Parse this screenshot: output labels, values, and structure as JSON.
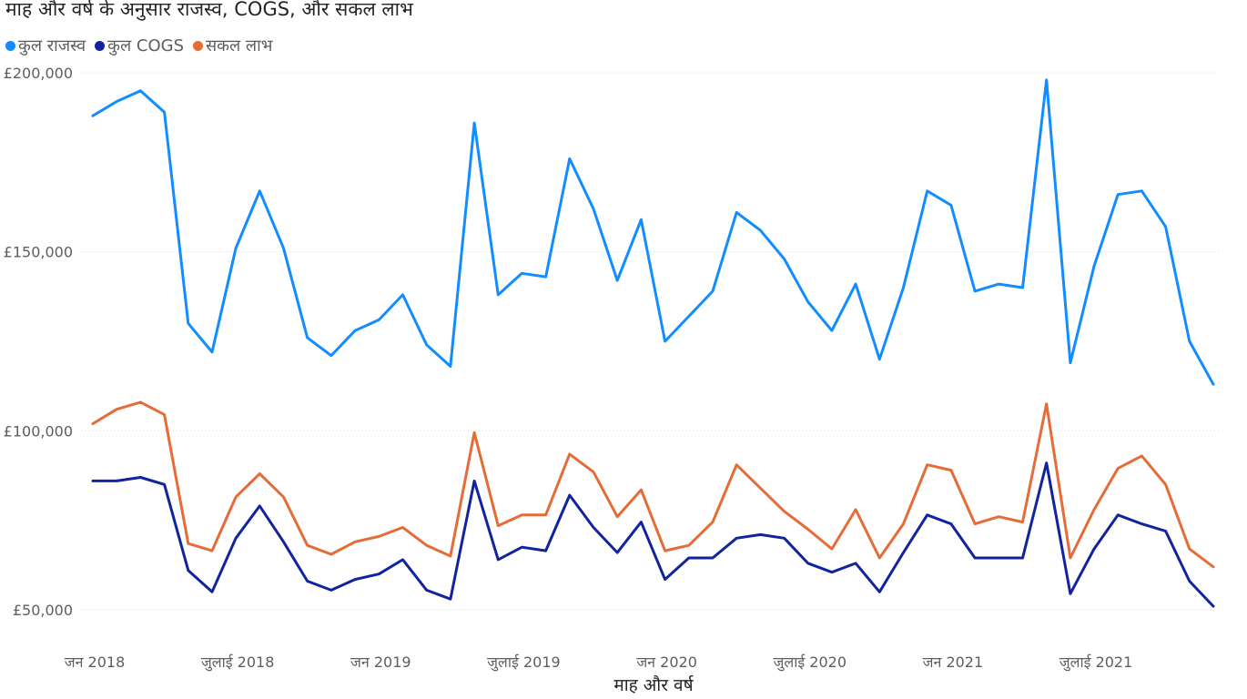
{
  "chart_data": {
    "type": "line",
    "title": "माह और वर्ष के अनुसार राजस्व, COGS, और सकल लाभ",
    "xlabel": "माह और वर्ष",
    "ylabel": "",
    "ylim": [
      50000,
      200000
    ],
    "y_ticks": [
      {
        "value": 50000,
        "label": "£50,000"
      },
      {
        "value": 100000,
        "label": "£100,000"
      },
      {
        "value": 150000,
        "label": "£150,000"
      },
      {
        "value": 200000,
        "label": "£200,000"
      }
    ],
    "x_ticks": [
      {
        "index": 0,
        "label": "जन 2018"
      },
      {
        "index": 6,
        "label": "जुलाई 2018"
      },
      {
        "index": 12,
        "label": "जन 2019"
      },
      {
        "index": 18,
        "label": "जुलाई 2019"
      },
      {
        "index": 24,
        "label": "जन 2020"
      },
      {
        "index": 30,
        "label": "जुलाई 2020"
      },
      {
        "index": 36,
        "label": "जन 2021"
      },
      {
        "index": 42,
        "label": "जुलाई 2021"
      }
    ],
    "grid": true,
    "legend_position": "top-left",
    "series": [
      {
        "name": "कुल राजस्व",
        "color": "#118DFF",
        "values": [
          188000,
          192000,
          195000,
          189000,
          130000,
          122000,
          151000,
          167000,
          151000,
          126000,
          121000,
          128000,
          131000,
          138000,
          124000,
          118000,
          186000,
          138000,
          144000,
          143000,
          176000,
          162000,
          142000,
          159000,
          125000,
          132000,
          139000,
          161000,
          156000,
          148000,
          136000,
          128000,
          141000,
          120000,
          140000,
          167000,
          163000,
          139000,
          141000,
          140000,
          198000,
          119000,
          146000,
          166000,
          167000,
          157000,
          125000,
          113000
        ]
      },
      {
        "name": "कुल COGS",
        "color": "#12239E",
        "values": [
          86000,
          86000,
          87000,
          85000,
          61000,
          55000,
          70000,
          79000,
          69000,
          58000,
          55500,
          58500,
          60000,
          64000,
          55500,
          53000,
          86000,
          64000,
          67500,
          66500,
          82000,
          73000,
          66000,
          74500,
          58500,
          64500,
          64500,
          70000,
          71000,
          70000,
          63000,
          60500,
          63000,
          55000,
          66000,
          76500,
          74000,
          64500,
          64500,
          64500,
          91000,
          54500,
          67000,
          76500,
          74000,
          72000,
          58000,
          51000
        ]
      },
      {
        "name": "सकल लाभ",
        "color": "#E66C37",
        "values": [
          102000,
          106000,
          108000,
          104500,
          68500,
          66500,
          81500,
          88000,
          81500,
          68000,
          65500,
          69000,
          70500,
          73000,
          68000,
          65000,
          99500,
          73500,
          76500,
          76500,
          93500,
          88500,
          76000,
          83500,
          66500,
          68000,
          74500,
          90500,
          84000,
          77500,
          72500,
          67000,
          78000,
          64500,
          74000,
          90500,
          89000,
          74000,
          76000,
          74500,
          107500,
          64500,
          78000,
          89500,
          93000,
          85000,
          67000,
          62000
        ]
      }
    ]
  }
}
